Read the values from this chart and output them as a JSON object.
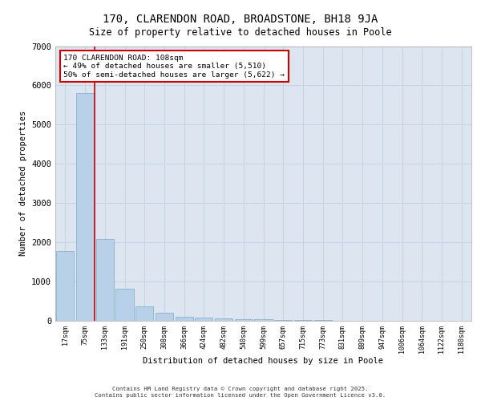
{
  "title_line1": "170, CLARENDON ROAD, BROADSTONE, BH18 9JA",
  "title_line2": "Size of property relative to detached houses in Poole",
  "xlabel": "Distribution of detached houses by size in Poole",
  "ylabel": "Number of detached properties",
  "categories": [
    "17sqm",
    "75sqm",
    "133sqm",
    "191sqm",
    "250sqm",
    "308sqm",
    "366sqm",
    "424sqm",
    "482sqm",
    "540sqm",
    "599sqm",
    "657sqm",
    "715sqm",
    "773sqm",
    "831sqm",
    "889sqm",
    "947sqm",
    "1006sqm",
    "1064sqm",
    "1122sqm",
    "1180sqm"
  ],
  "values": [
    1780,
    5810,
    2090,
    820,
    370,
    200,
    110,
    90,
    65,
    50,
    40,
    30,
    20,
    15,
    10,
    8,
    5,
    4,
    3,
    2,
    1
  ],
  "bar_color": "#b8d0e8",
  "bar_edge_color": "#7aaac8",
  "grid_color": "#c8d4e4",
  "bg_color": "#dde6f0",
  "vline_x": 1.5,
  "vline_color": "#cc0000",
  "annotation_title": "170 CLARENDON ROAD: 108sqm",
  "annotation_line2": "← 49% of detached houses are smaller (5,510)",
  "annotation_line3": "50% of semi-detached houses are larger (5,622) →",
  "annotation_box_color": "#cc0000",
  "annotation_bg": "#ffffff",
  "footer_line1": "Contains HM Land Registry data © Crown copyright and database right 2025.",
  "footer_line2": "Contains public sector information licensed under the Open Government Licence v3.0.",
  "ylim": [
    0,
    7000
  ],
  "yticks": [
    0,
    1000,
    2000,
    3000,
    4000,
    5000,
    6000,
    7000
  ]
}
